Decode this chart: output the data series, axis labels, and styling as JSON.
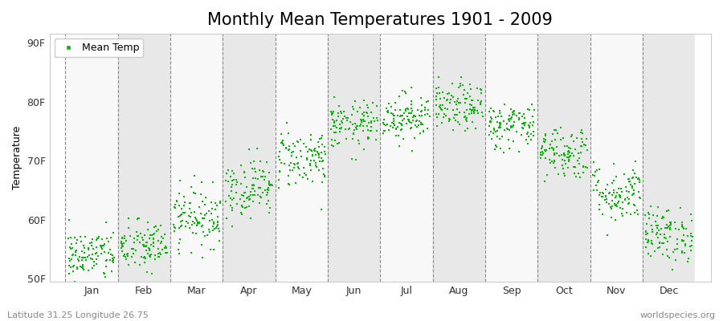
{
  "title": "Monthly Mean Temperatures 1901 - 2009",
  "ylabel": "Temperature",
  "xlabel_bottom_left": "Latitude 31.25 Longitude 26.75",
  "xlabel_bottom_right": "worldspecies.org",
  "y_ticks": [
    50,
    60,
    70,
    80,
    90
  ],
  "y_tick_labels": [
    "50F",
    "60F",
    "70F",
    "80F",
    "90F"
  ],
  "ylim": [
    49.5,
    91.5
  ],
  "months": [
    "Jan",
    "Feb",
    "Mar",
    "Apr",
    "May",
    "Jun",
    "Jul",
    "Aug",
    "Sep",
    "Oct",
    "Nov",
    "Dec"
  ],
  "dot_color": "#00bb00",
  "dot_size": 3,
  "background_light": "#e8e8e8",
  "background_white": "#f8f8f8",
  "title_fontsize": 15,
  "axis_fontsize": 9,
  "tick_fontsize": 9,
  "legend_label": "Mean Temp",
  "monthly_mean_temps_F": [
    54.0,
    55.5,
    60.5,
    65.5,
    70.5,
    76.0,
    77.5,
    79.0,
    76.0,
    71.5,
    64.5,
    57.5
  ],
  "monthly_std_F": [
    2.2,
    2.2,
    2.5,
    2.5,
    2.5,
    2.0,
    2.0,
    2.0,
    2.0,
    2.3,
    2.5,
    2.3
  ],
  "n_years": 109,
  "seed": 42
}
